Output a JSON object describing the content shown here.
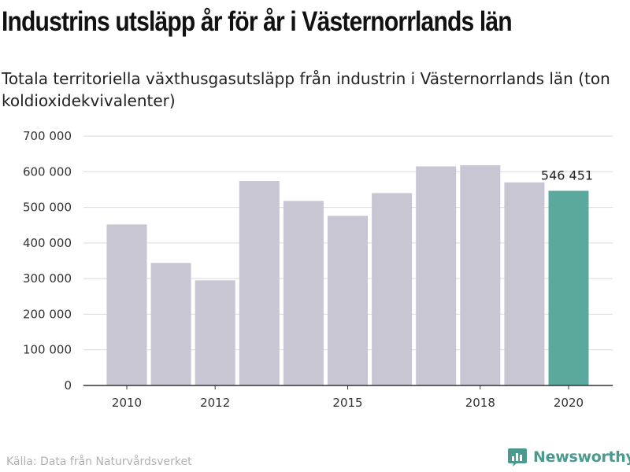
{
  "header": {
    "title": "Industrins utsläpp år för år i Västernorrlands län",
    "subtitle": "Totala territoriella växthusgasutsläpp från industrin i Västernorrlands län (ton koldioxidekvivalenter)"
  },
  "footer": {
    "source": "Källa: Data från Naturvårdsverket",
    "brand": "Newsworthy",
    "brand_icon": "newsworthy-logo-icon"
  },
  "colors": {
    "bar": "#c8c6d2",
    "highlight": "#5ba89d",
    "axis": "#333333",
    "grid": "#d9d9d9",
    "brand": "#4a9a8e"
  },
  "chart_data": {
    "type": "bar",
    "title": "Industrins utsläpp år för år i Västernorrlands län",
    "subtitle": "Totala territoriella växthusgasutsläpp från industrin i Västernorrlands län (ton koldioxidekvivalenter)",
    "categories": [
      "2010",
      "2011",
      "2012",
      "2013",
      "2014",
      "2015",
      "2016",
      "2017",
      "2018",
      "2019",
      "2020"
    ],
    "values": [
      452000,
      344000,
      295000,
      574000,
      518000,
      476000,
      540000,
      615000,
      618000,
      570000,
      546451
    ],
    "x_tick_labels": [
      "2010",
      "2012",
      "2015",
      "2018",
      "2020"
    ],
    "y_tick_labels": [
      "0",
      "100 000",
      "200 000",
      "300 000",
      "400 000",
      "500 000",
      "600 000",
      "700 000"
    ],
    "y_ticks": [
      0,
      100000,
      200000,
      300000,
      400000,
      500000,
      600000,
      700000
    ],
    "ylim": [
      0,
      700000
    ],
    "highlight_category": "2020",
    "data_labels": [
      {
        "category": "2020",
        "text": "546 451"
      }
    ],
    "grid": true,
    "legend": "none"
  }
}
